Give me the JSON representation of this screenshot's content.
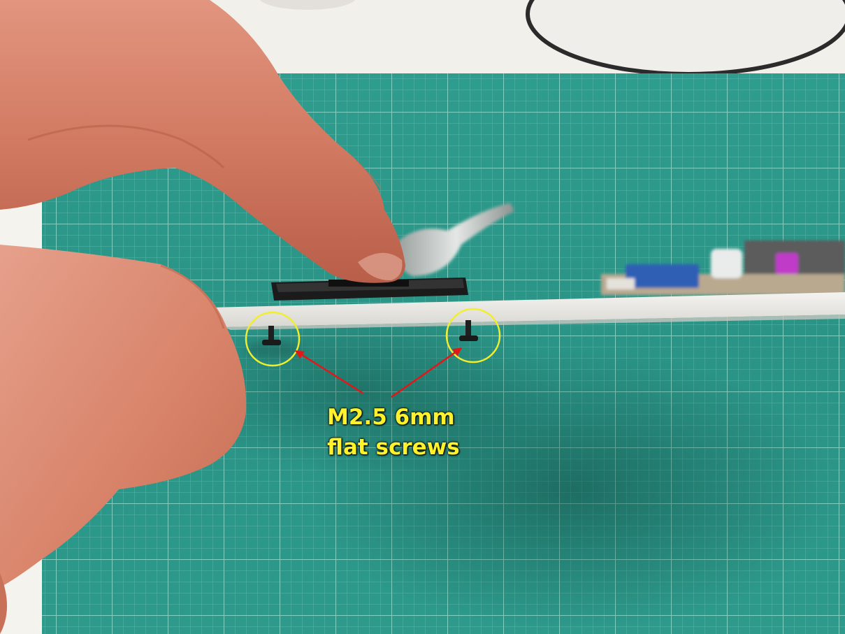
{
  "annotation": {
    "line1": "M2.5 6mm",
    "line2": "flat screws",
    "text_color": "#fff12a",
    "highlight_color": "#f2ee2e",
    "arrow_color": "#e01818"
  },
  "palette": {
    "mat": "#2f9e8f",
    "mat_grid": "#8fd3c6",
    "skin": "#d9826c",
    "plate": "#ecebe6",
    "module": "#1e1e1e"
  }
}
